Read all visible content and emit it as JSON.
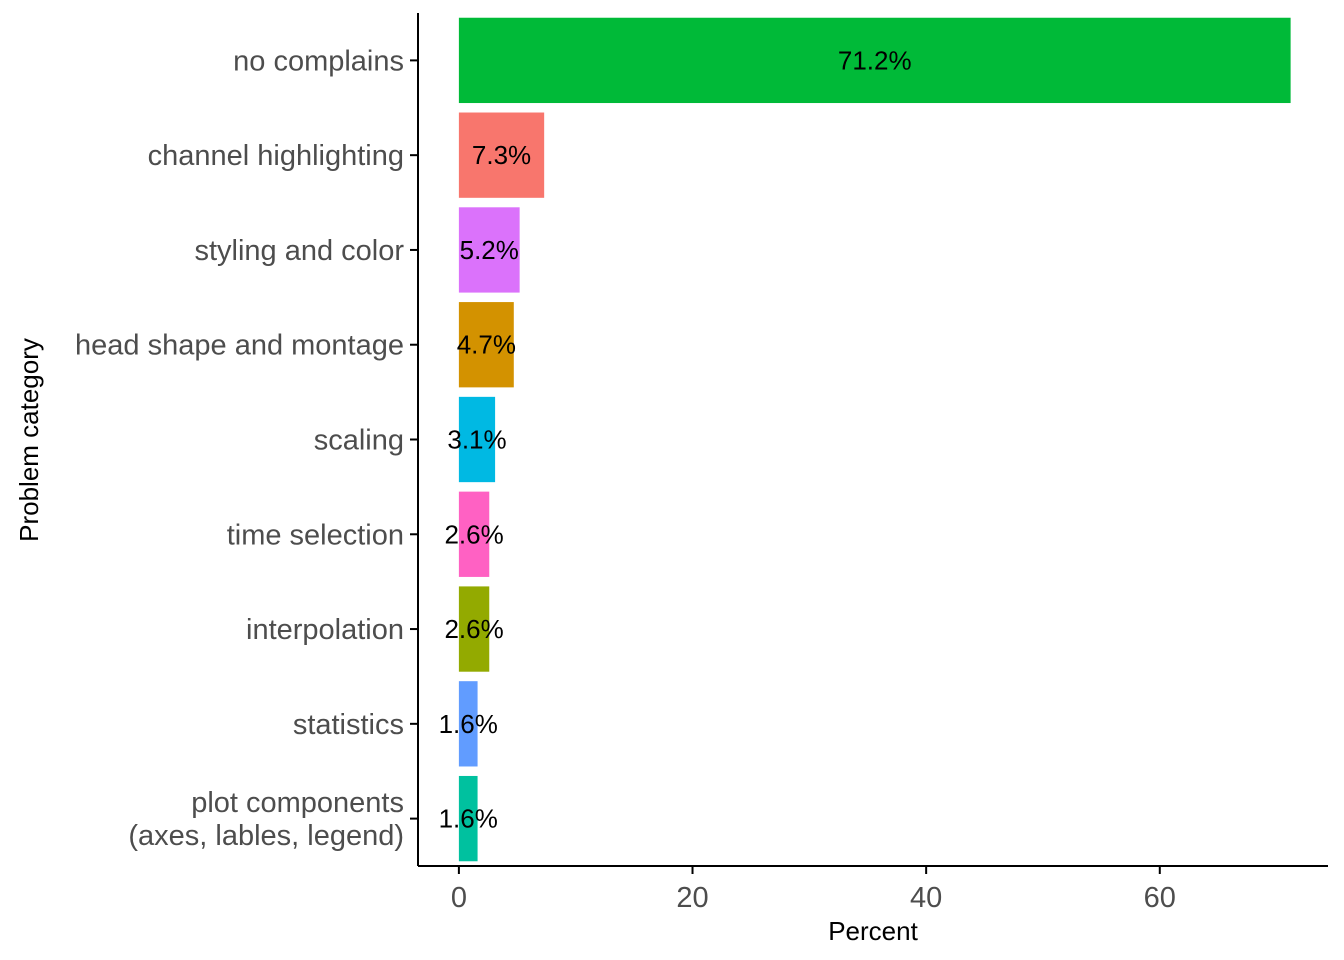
{
  "chart_data": {
    "type": "bar",
    "orientation": "horizontal",
    "xlabel": "Percent",
    "ylabel": "Problem category",
    "xlim": [
      -3.5,
      74.4
    ],
    "x_ticks": [
      0,
      20,
      40,
      60
    ],
    "grid": false,
    "legend": "none",
    "categories": [
      {
        "label": [
          "no complains"
        ],
        "value": 71.2,
        "value_label": "71.2%",
        "color": "#00BA38"
      },
      {
        "label": [
          "channel highlighting"
        ],
        "value": 7.3,
        "value_label": "7.3%",
        "color": "#F8766D"
      },
      {
        "label": [
          "styling and color"
        ],
        "value": 5.2,
        "value_label": "5.2%",
        "color": "#DB72FB"
      },
      {
        "label": [
          "head shape and montage"
        ],
        "value": 4.7,
        "value_label": "4.7%",
        "color": "#D39200"
      },
      {
        "label": [
          "scaling"
        ],
        "value": 3.1,
        "value_label": "3.1%",
        "color": "#00B9E3"
      },
      {
        "label": [
          "time selection"
        ],
        "value": 2.6,
        "value_label": "2.6%",
        "color": "#FF61C3"
      },
      {
        "label": [
          "interpolation"
        ],
        "value": 2.6,
        "value_label": "2.6%",
        "color": "#93AA00"
      },
      {
        "label": [
          "statistics"
        ],
        "value": 1.6,
        "value_label": "1.6%",
        "color": "#619CFF"
      },
      {
        "label": [
          "plot components",
          "(axes, lables, legend)"
        ],
        "value": 1.6,
        "value_label": "1.6%",
        "color": "#00C19F"
      }
    ]
  }
}
